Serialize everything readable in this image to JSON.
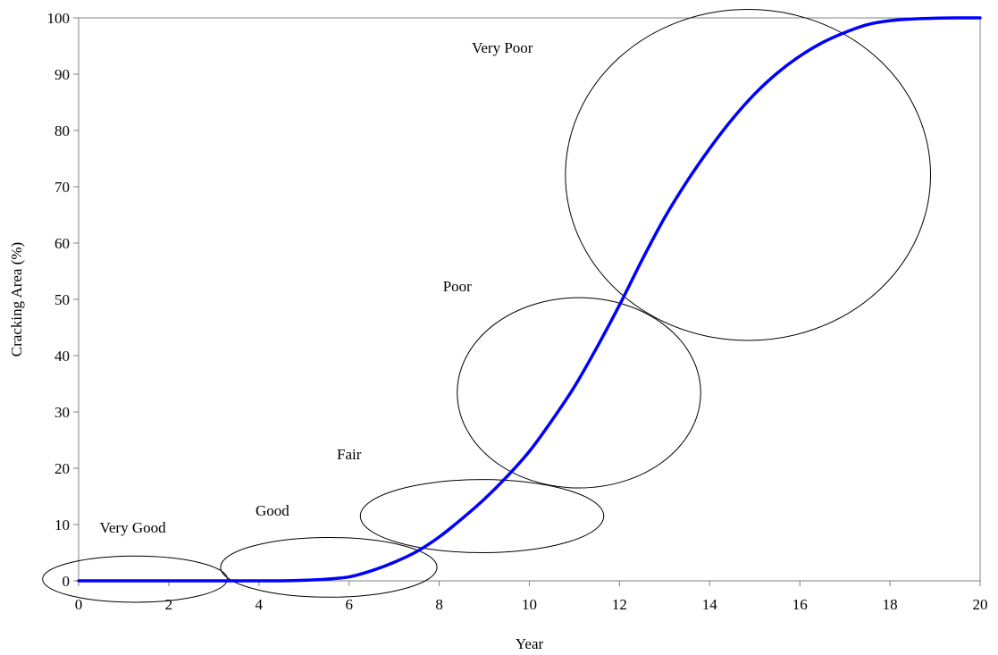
{
  "chart_data": {
    "type": "line",
    "title": "",
    "xlabel": "Year",
    "ylabel": "Cracking Area (%)",
    "xlim": [
      0,
      20
    ],
    "ylim": [
      0,
      100
    ],
    "x_ticks": [
      0,
      2,
      4,
      6,
      8,
      10,
      12,
      14,
      16,
      18,
      20
    ],
    "y_ticks": [
      0,
      10,
      20,
      30,
      40,
      50,
      60,
      70,
      80,
      90,
      100
    ],
    "grid": false,
    "legend": "none",
    "series_color": "#0000ff",
    "series": [
      {
        "x": [
          0,
          1,
          2,
          3,
          4,
          4.5,
          5,
          5.5,
          6,
          6.5,
          7,
          7.5,
          8,
          8.5,
          9,
          9.5,
          10,
          10.5,
          11,
          11.5,
          12,
          12.5,
          13,
          13.5,
          14,
          14.5,
          15,
          15.5,
          16,
          16.5,
          17,
          17.5,
          18,
          18.5,
          19,
          19.5,
          20
        ],
        "y": [
          0,
          0,
          0,
          0,
          0,
          0,
          0.1,
          0.3,
          0.7,
          1.8,
          3.3,
          5.2,
          7.8,
          11,
          14.5,
          18.5,
          23,
          28.5,
          34.5,
          41.5,
          49,
          57,
          64.5,
          71,
          76.8,
          82,
          86.5,
          90.2,
          93.2,
          95.6,
          97.4,
          98.8,
          99.5,
          99.8,
          99.95,
          100,
          100
        ]
      }
    ],
    "regions": [
      {
        "label": "Very Good",
        "cx": 1.25,
        "cy": 0.3,
        "rx": 2.05,
        "ry": 4.1,
        "label_x": 1.2,
        "label_y": 8.6
      },
      {
        "label": "Good",
        "cx": 5.55,
        "cy": 2.4,
        "rx": 2.4,
        "ry": 5.3,
        "label_x": 4.3,
        "label_y": 11.6
      },
      {
        "label": "Fair",
        "cx": 8.95,
        "cy": 11.5,
        "rx": 2.7,
        "ry": 6.5,
        "label_x": 6.0,
        "label_y": 21.6
      },
      {
        "label": "Poor",
        "cx": 11.1,
        "cy": 33.4,
        "rx": 2.7,
        "ry": 16.9,
        "label_x": 8.4,
        "label_y": 51.4
      },
      {
        "label": "Very Poor",
        "cx": 14.85,
        "cy": 72.1,
        "rx": 4.05,
        "ry": 29.4,
        "label_x": 9.4,
        "label_y": 93.8
      }
    ]
  }
}
